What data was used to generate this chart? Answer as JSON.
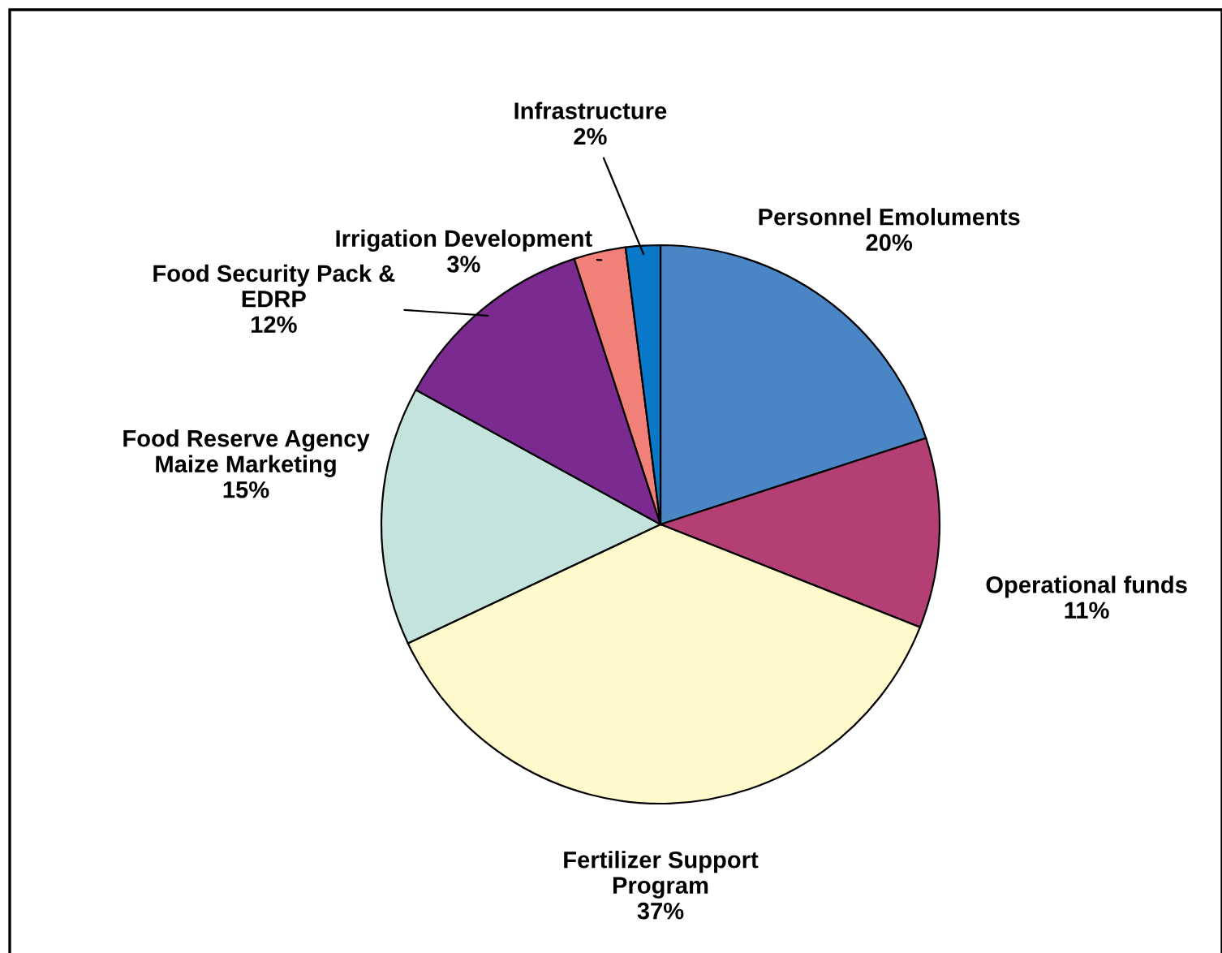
{
  "chart_data": {
    "type": "pie",
    "categories": [
      "Personnel Emoluments",
      "Operational funds",
      "Fertilizer Support\nProgram",
      "Food Reserve Agency\nMaize Marketing",
      "Food Security Pack &\nEDRP",
      "Irrigation Development",
      "Infrastructure"
    ],
    "values": [
      20,
      11,
      37,
      15,
      12,
      3,
      2
    ],
    "value_labels": [
      "20%",
      "11%",
      "37%",
      "15%",
      "12%",
      "3%",
      "2%"
    ],
    "colors": [
      "#4a86c5",
      "#b33f74",
      "#fff9cc",
      "#c4e3dc",
      "#7b2b8f",
      "#f08078",
      "#0a78c8"
    ]
  }
}
